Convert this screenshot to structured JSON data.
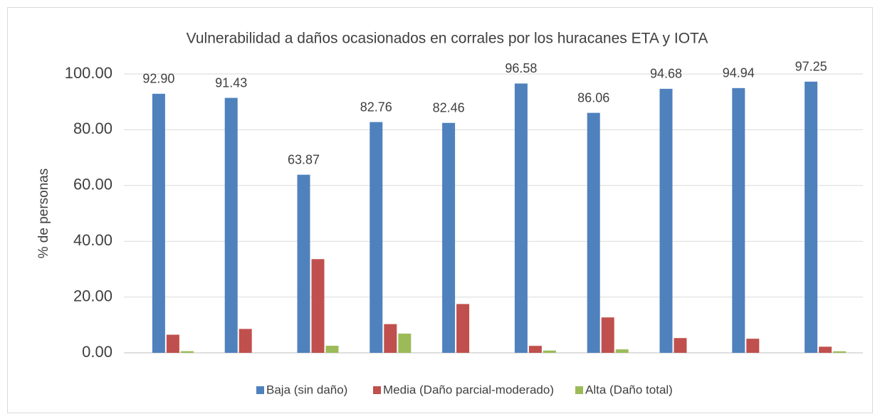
{
  "chart_data": {
    "type": "bar",
    "title": "Vulnerabilidad a daños ocasionados en corrales por los huracanes ETA y IOTA",
    "y_label": "% de personas",
    "categories": [
      null,
      null,
      null,
      null,
      null,
      null,
      null,
      null,
      null,
      null
    ],
    "series": [
      {
        "name": "Baja (sin daño)",
        "color": "#4f81bd",
        "values": [
          92.9,
          91.43,
          63.87,
          82.76,
          82.46,
          96.58,
          86.06,
          94.68,
          94.94,
          97.25
        ],
        "value_labels": [
          "92.90",
          "91.43",
          "63.87",
          "82.76",
          "82.46",
          "96.58",
          "86.06",
          "94.68",
          "94.94",
          "97.25"
        ]
      },
      {
        "name": "Media (Daño parcial-moderado)",
        "color": "#c0504d",
        "values": [
          6.5,
          8.57,
          33.6,
          10.3,
          17.5,
          2.5,
          12.7,
          5.3,
          5.06,
          2.2
        ]
      },
      {
        "name": "Alta (Daño total)",
        "color": "#9bbb59",
        "values": [
          0.6,
          0,
          2.53,
          6.9,
          0,
          0.82,
          1.24,
          0,
          0,
          0.55
        ]
      }
    ],
    "ylim": [
      0,
      100
    ],
    "yticks": [
      {
        "value": 0,
        "label": "0.00"
      },
      {
        "value": 20,
        "label": "20.00"
      },
      {
        "value": 40,
        "label": "40.00"
      },
      {
        "value": 60,
        "label": "60.00"
      },
      {
        "value": 80,
        "label": "80.00"
      },
      {
        "value": 100,
        "label": "100.00"
      }
    ],
    "grid": true,
    "legend": "bottom"
  }
}
